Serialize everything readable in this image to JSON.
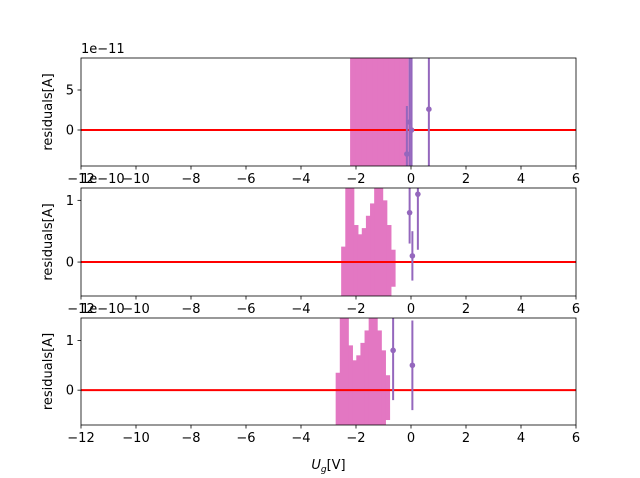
{
  "chart_data": [
    {
      "type": "scatter",
      "offset_label": "1e−11",
      "ylabel": "residuals[A]",
      "xlabel": "",
      "xlim": [
        -12,
        6
      ],
      "ylim": [
        -4.5,
        9
      ],
      "xticks": [
        -12,
        -10,
        -8,
        -6,
        -4,
        -2,
        0,
        2,
        4,
        6
      ],
      "xtick_labels": [
        "−12",
        "−10",
        "−8",
        "−6",
        "−4",
        "−2",
        "0",
        "2",
        "4",
        "6"
      ],
      "yticks": [
        0,
        5
      ],
      "ytick_labels": [
        "0",
        "5"
      ],
      "zero_line": 0,
      "band": {
        "color": "#e377c2",
        "x": [
          -2.15,
          -2.05,
          -1.95,
          -1.85,
          -1.75,
          -1.65,
          -1.55,
          -1.45,
          -1.35,
          -1.25,
          -1.15,
          -1.05,
          -0.95,
          -0.85,
          -0.75,
          -0.65,
          -0.55,
          -0.45,
          -0.35,
          -0.25,
          -0.15
        ],
        "lower": [
          -4.5,
          -4.5,
          -4.5,
          -4.5,
          -4.5,
          -4.5,
          -4.5,
          -4.5,
          -4.5,
          -4.5,
          -4.5,
          -4.5,
          -4.5,
          -4.5,
          -4.5,
          -4.5,
          -4.5,
          -4.5,
          -4.5,
          -4.5,
          -4.5
        ],
        "upper": [
          9,
          9,
          9,
          9,
          9,
          9,
          9,
          9,
          9,
          9,
          9,
          9,
          9,
          9,
          9,
          9,
          9,
          9,
          9,
          9,
          9
        ]
      },
      "points": {
        "color": "#9467bd",
        "x": [
          -0.15,
          -0.05,
          0.02,
          0.65
        ],
        "y": [
          -3,
          1,
          0,
          2.6
        ],
        "err": [
          6,
          9,
          9,
          14
        ]
      }
    },
    {
      "type": "scatter",
      "offset_label": "1e−10",
      "ylabel": "residuals[A]",
      "xlabel": "",
      "xlim": [
        -12,
        6
      ],
      "ylim": [
        -0.55,
        1.2
      ],
      "xticks": [
        -12,
        -10,
        -8,
        -6,
        -4,
        -2,
        0,
        2,
        4,
        6
      ],
      "xtick_labels": [
        "−12",
        "−10",
        "−8",
        "−6",
        "−4",
        "−2",
        "0",
        "2",
        "4",
        "6"
      ],
      "yticks": [
        0,
        1
      ],
      "ytick_labels": [
        "0",
        "1"
      ],
      "zero_line": 0,
      "band": {
        "color": "#e377c2",
        "x": [
          -2.45,
          -2.3,
          -2.15,
          -2.0,
          -1.85,
          -1.7,
          -1.55,
          -1.4,
          -1.25,
          -1.1,
          -0.95,
          -0.8,
          -0.65
        ],
        "lower": [
          -0.55,
          -0.55,
          -0.55,
          -0.55,
          -0.55,
          -0.55,
          -0.55,
          -0.55,
          -0.55,
          -0.55,
          -0.55,
          -0.55,
          -0.4
        ],
        "upper": [
          0.25,
          1.2,
          1.2,
          0.6,
          0.45,
          0.55,
          0.75,
          0.95,
          1.2,
          1.2,
          1.0,
          0.6,
          0.2
        ]
      },
      "points": {
        "color": "#9467bd",
        "x": [
          -0.05,
          0.05,
          0.25
        ],
        "y": [
          0.8,
          0.1,
          1.1
        ],
        "err": [
          0.5,
          0.4,
          0.9
        ]
      }
    },
    {
      "type": "scatter",
      "offset_label": "1e−10",
      "ylabel": "residuals[A]",
      "xlabel": "U_g[V]",
      "xlim": [
        -12,
        6
      ],
      "ylim": [
        -0.7,
        1.45
      ],
      "xticks": [
        -12,
        -10,
        -8,
        -6,
        -4,
        -2,
        0,
        2,
        4,
        6
      ],
      "xtick_labels": [
        "−12",
        "−10",
        "−8",
        "−6",
        "−4",
        "−2",
        "0",
        "2",
        "4",
        "6"
      ],
      "yticks": [
        0,
        1
      ],
      "ytick_labels": [
        "0",
        "1"
      ],
      "zero_line": 0,
      "band": {
        "color": "#e377c2",
        "x": [
          -2.65,
          -2.5,
          -2.35,
          -2.2,
          -2.05,
          -1.9,
          -1.75,
          -1.6,
          -1.45,
          -1.3,
          -1.15,
          -1.0,
          -0.85
        ],
        "lower": [
          -0.7,
          -0.7,
          -0.7,
          -0.7,
          -0.7,
          -0.7,
          -0.7,
          -0.7,
          -0.7,
          -0.7,
          -0.7,
          -0.7,
          -0.6
        ],
        "upper": [
          0.35,
          1.45,
          1.45,
          0.9,
          0.6,
          0.7,
          0.95,
          1.2,
          1.45,
          1.45,
          1.2,
          0.8,
          0.3
        ]
      },
      "points": {
        "color": "#9467bd",
        "x": [
          -0.65,
          0.05
        ],
        "y": [
          0.8,
          0.5
        ],
        "err": [
          1.0,
          0.9
        ]
      }
    }
  ],
  "colors": {
    "zero_line": "#ff0000",
    "axes": "#000000"
  }
}
